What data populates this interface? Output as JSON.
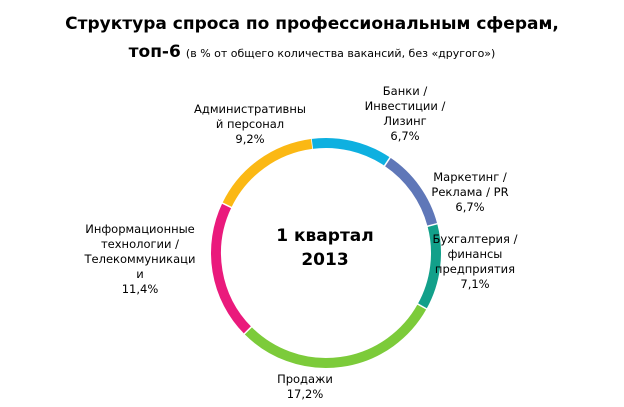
{
  "chart_data": {
    "type": "pie",
    "variant": "donut",
    "title": "Структура спроса по профессиональным сферам,",
    "title_line2": "топ-6",
    "subtitle": "(в % от общего количества вакансий, без «другого»)",
    "center_label": [
      "1 квартал",
      "2013"
    ],
    "slices": [
      {
        "lines": [
          "Банки /",
          "Инвестиции /",
          "Лизинг"
        ],
        "value": 6.7,
        "value_label": "6,7%",
        "color": "#0eb0e0"
      },
      {
        "lines": [
          "Маркетинг /",
          "Реклама / PR"
        ],
        "value": 6.7,
        "value_label": "6,7%",
        "color": "#5f77b8"
      },
      {
        "lines": [
          "Бухгалтерия /",
          "финансы",
          "предприятия"
        ],
        "value": 7.1,
        "value_label": "7,1%",
        "color": "#12a08a"
      },
      {
        "lines": [
          "Продажи"
        ],
        "value": 17.2,
        "value_label": "17,2%",
        "color": "#7ccb3a"
      },
      {
        "lines": [
          "Информационные",
          "технологии /",
          "Телекоммуникаци",
          "и"
        ],
        "value": 11.4,
        "value_label": "11,4%",
        "color": "#ea1a7c"
      },
      {
        "lines": [
          "Административны",
          "й персонал"
        ],
        "value": 9.2,
        "value_label": "9,2%",
        "color": "#fbb814"
      }
    ]
  }
}
